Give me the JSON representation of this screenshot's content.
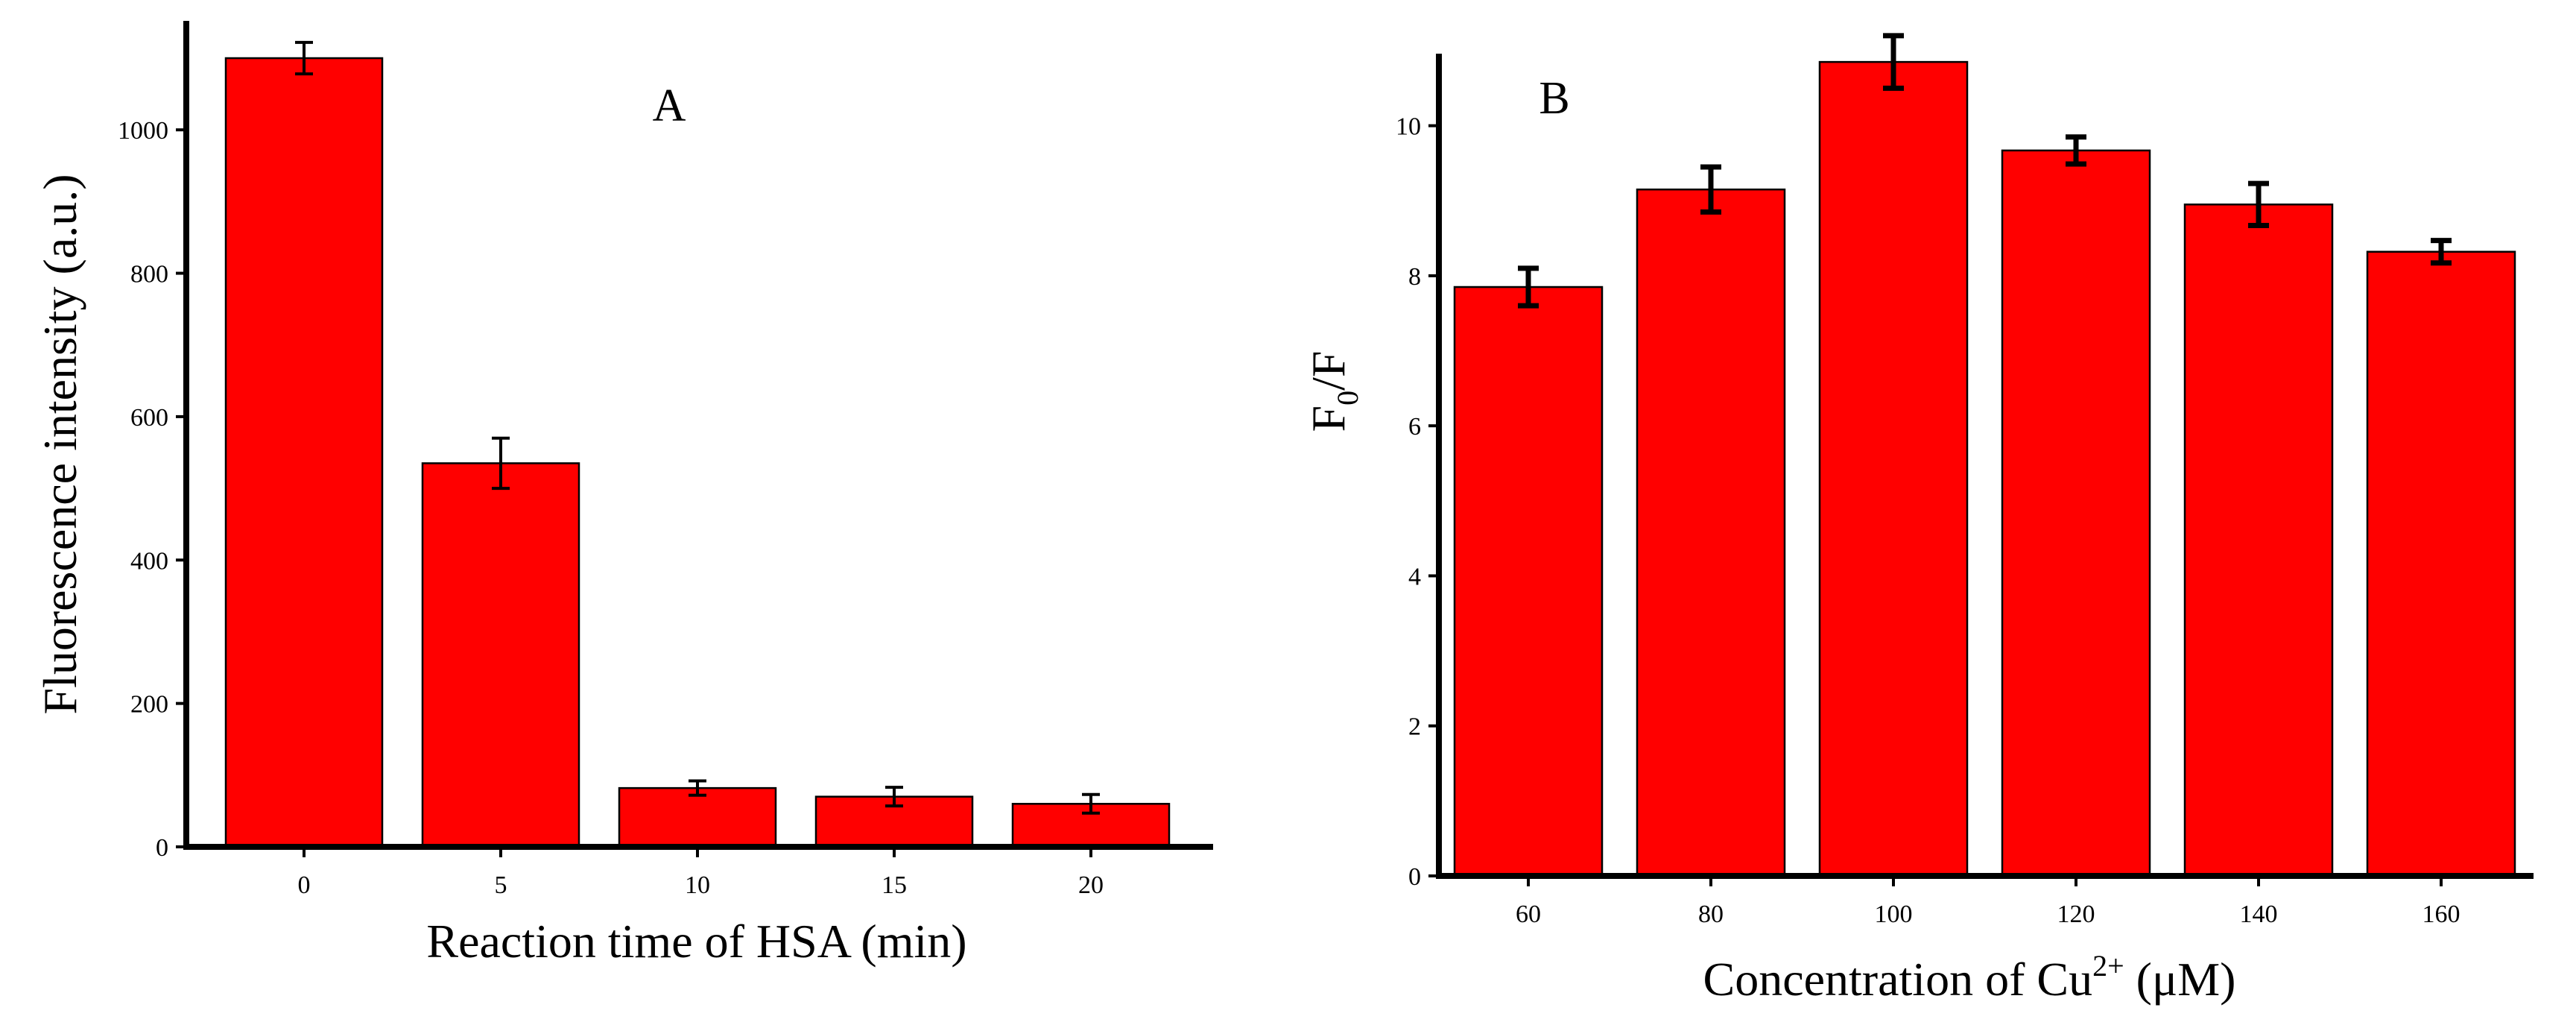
{
  "chart_data": [
    {
      "type": "bar",
      "panel_label": "A",
      "categories": [
        "0",
        "5",
        "10",
        "15",
        "20"
      ],
      "values": [
        1100,
        535,
        82,
        70,
        60
      ],
      "errors": [
        22,
        35,
        10,
        13,
        13
      ],
      "xlabel": "Reaction time of HSA (min)",
      "ylabel": "Fluorescence intensity (a.u.)",
      "ylim": [
        0,
        1100
      ],
      "yticks": [
        0,
        200,
        400,
        600,
        800,
        1000
      ],
      "bar_color": "#ff0000",
      "grid": false,
      "legend": "none"
    },
    {
      "type": "bar",
      "panel_label": "B",
      "categories": [
        "60",
        "80",
        "100",
        "120",
        "140",
        "160"
      ],
      "values": [
        7.85,
        9.15,
        10.85,
        9.67,
        8.95,
        8.32
      ],
      "errors": [
        0.25,
        0.3,
        0.35,
        0.18,
        0.28,
        0.15
      ],
      "xlabel_parts": {
        "main": "Concentration of Cu",
        "sup": "2+",
        "tail": " (μM)"
      },
      "ylabel_parts": {
        "main": "F",
        "sub": "0",
        "tail": "/F"
      },
      "ylim": [
        0,
        11
      ],
      "yticks": [
        0,
        2,
        4,
        6,
        8,
        10
      ],
      "bar_color": "#ff0000",
      "grid": false,
      "legend": "none"
    }
  ]
}
